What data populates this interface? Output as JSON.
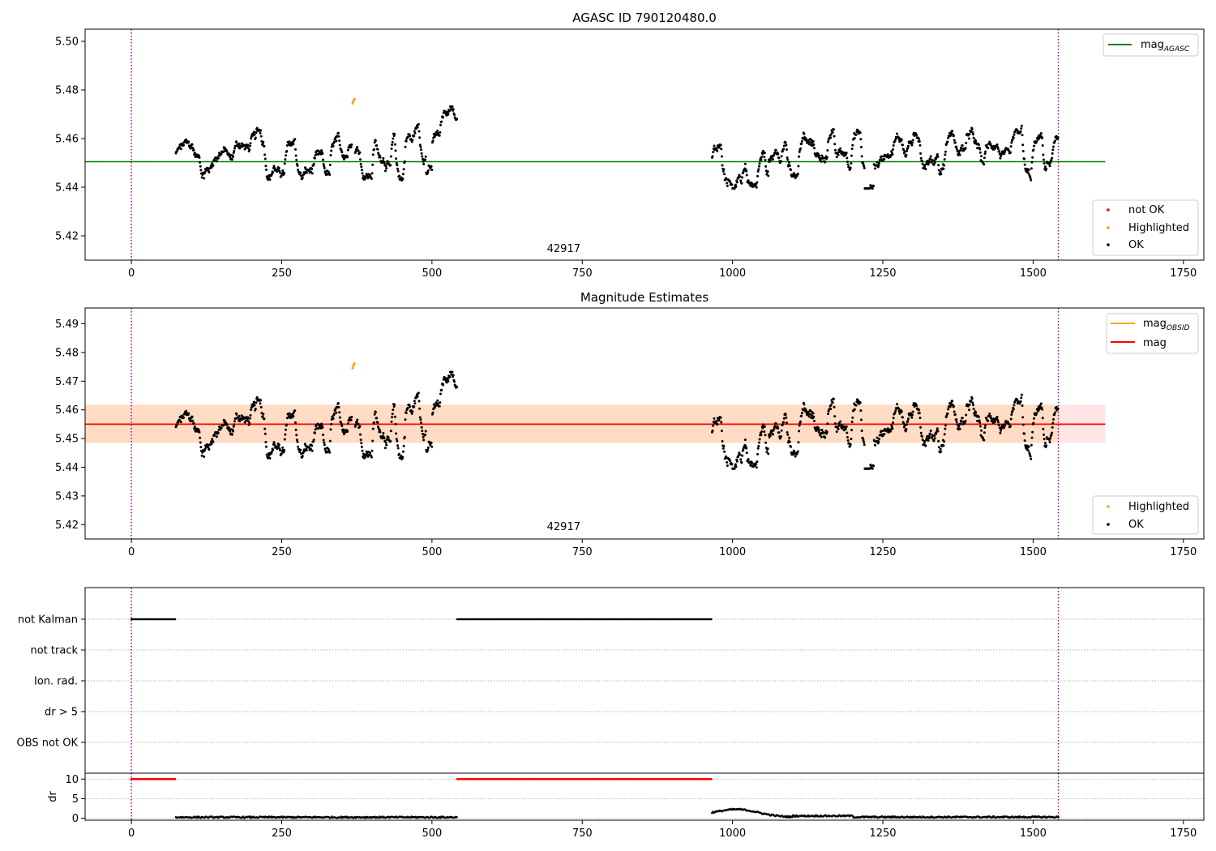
{
  "chart_data": [
    {
      "type": "scatter",
      "title": "AGASC ID 790120480.0",
      "xlim": [
        -77,
        1784
      ],
      "ylim": [
        5.41,
        5.505
      ],
      "xticks": [
        0,
        250,
        500,
        750,
        1000,
        1250,
        1500,
        1750
      ],
      "yticks": [
        5.42,
        5.44,
        5.46,
        5.48,
        5.5
      ],
      "ytick_labels": [
        "5.42",
        "5.44",
        "5.46",
        "5.48",
        "5.50"
      ],
      "obsid_label": "42917",
      "obsid_label_pos": [
        773,
        5.414
      ],
      "vlines": [
        0,
        1542
      ],
      "mag_agasc": {
        "value": 5.4505,
        "x": [
          -77,
          1620
        ]
      },
      "segments": [
        {
          "x0": 74,
          "x1": 542,
          "status": "OK"
        },
        {
          "x0": 966,
          "x1": 1542,
          "status": "OK"
        }
      ],
      "highlighted": [
        [
          368,
          5.4745
        ],
        [
          369,
          5.4752
        ],
        [
          370,
          5.4758
        ],
        [
          371,
          5.4762
        ]
      ],
      "legend_lines": [
        {
          "name": "mag",
          "sub": "AGASC",
          "color": "#008000"
        }
      ],
      "legend_points": [
        {
          "name": "not OK",
          "color": "#ff0000"
        },
        {
          "name": "Highlighted",
          "color": "#ffa500"
        },
        {
          "name": "OK",
          "color": "#000000"
        }
      ]
    },
    {
      "type": "scatter",
      "title": "Magnitude Estimates",
      "xlim": [
        -77,
        1784
      ],
      "ylim": [
        5.415,
        5.4955
      ],
      "xticks": [
        0,
        250,
        500,
        750,
        1000,
        1250,
        1500,
        1750
      ],
      "yticks": [
        5.42,
        5.43,
        5.44,
        5.45,
        5.46,
        5.47,
        5.48,
        5.49
      ],
      "ytick_labels": [
        "5.42",
        "5.43",
        "5.44",
        "5.45",
        "5.46",
        "5.47",
        "5.48",
        "5.49"
      ],
      "obsid_label": "42917",
      "obsid_label_pos": [
        773,
        5.4187
      ],
      "vlines": [
        0,
        1542
      ],
      "mag_line": {
        "value": 5.455,
        "x": [
          -77,
          1620
        ],
        "color": "#ff0000"
      },
      "mag_band": {
        "low": 5.4485,
        "high": 5.4618,
        "x": [
          -77,
          1620
        ]
      },
      "mag_obsid": {
        "value": 5.455,
        "x": [
          -77,
          1542
        ],
        "band_low": 5.4485,
        "band_high": 5.4618
      },
      "highlighted": [
        [
          368,
          5.4745
        ],
        [
          369,
          5.4752
        ],
        [
          370,
          5.4758
        ],
        [
          371,
          5.4762
        ]
      ],
      "legend_lines": [
        {
          "name": "mag",
          "sub": "OBSID",
          "color": "#ffa500"
        },
        {
          "name": "mag",
          "sub": "",
          "color": "#ff0000"
        }
      ],
      "legend_points": [
        {
          "name": "Highlighted",
          "color": "#ffa500"
        },
        {
          "name": "OK",
          "color": "#000000"
        }
      ]
    },
    {
      "type": "scatter",
      "title": "",
      "xlim": [
        -77,
        1784
      ],
      "xticks": [
        0,
        250,
        500,
        750,
        1000,
        1250,
        1500,
        1750
      ],
      "flag_rows": [
        "not Kalman",
        "not track",
        "Ion. rad.",
        "dr > 5",
        "OBS not OK"
      ],
      "not_kalman_ranges": [
        [
          0,
          73
        ],
        [
          542,
          966
        ]
      ],
      "vlines": [
        0,
        1542
      ]
    },
    {
      "type": "line",
      "title": "",
      "ylabel": "dr",
      "xlim": [
        -77,
        1784
      ],
      "ylim": [
        -0.5,
        11.5
      ],
      "xticks": [
        0,
        250,
        500,
        750,
        1000,
        1250,
        1500,
        1750
      ],
      "yticks": [
        0,
        5,
        10
      ],
      "ytick_labels": [
        "0",
        "5",
        "10"
      ],
      "dr_clipped_ranges": [
        [
          0,
          73
        ],
        [
          542,
          966
        ]
      ],
      "dr_clipped_value": 10,
      "dr_segments": [
        {
          "x0": 74,
          "x1": 542,
          "base": 0.25
        },
        {
          "x0": 966,
          "x1": 1542,
          "base": 0.3
        }
      ],
      "vlines": [
        0,
        1542
      ]
    }
  ]
}
